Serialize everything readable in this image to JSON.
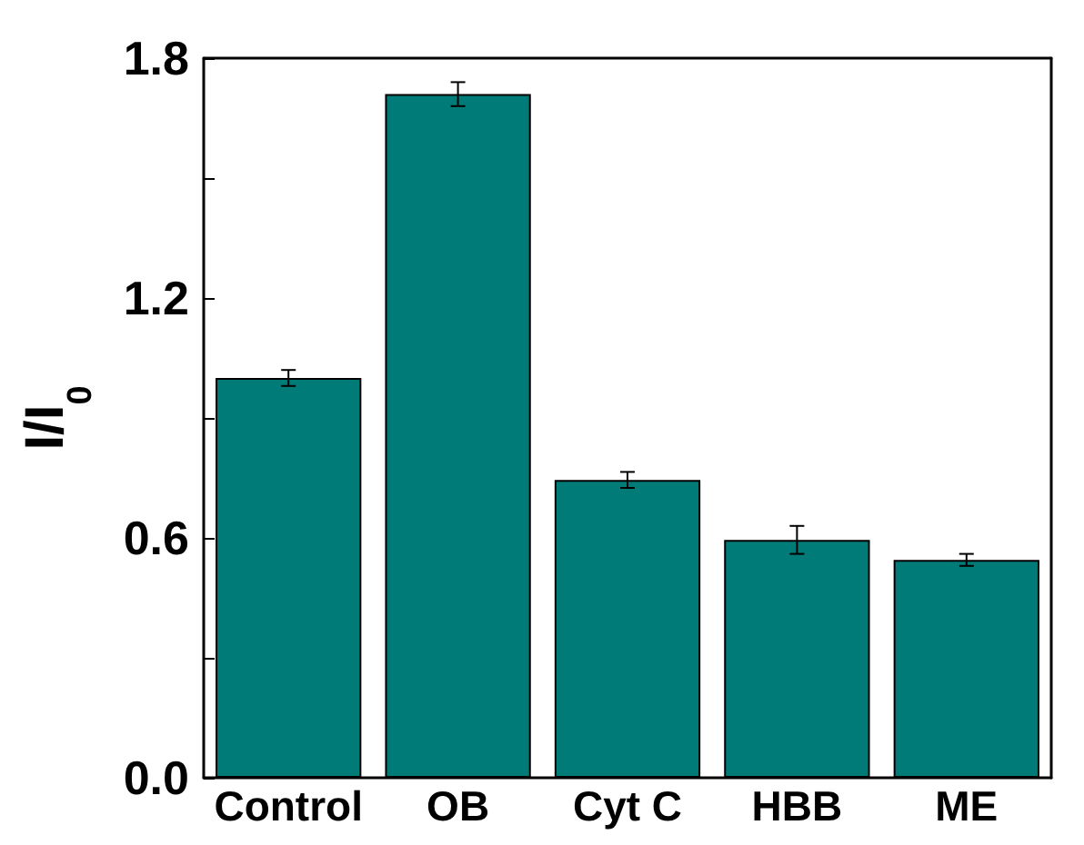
{
  "chart_data": {
    "type": "bar",
    "ylabel": "I/I$_{0}$",
    "categories": [
      "Control",
      "OB",
      "Cyt C",
      "HBB",
      "ME"
    ],
    "values": [
      1.0,
      1.71,
      0.745,
      0.595,
      0.545
    ],
    "errors": [
      0.02,
      0.03,
      0.02,
      0.035,
      0.015
    ],
    "color": "#007b78",
    "ylim": [
      0,
      1.8
    ],
    "yticks": [
      {
        "value": 0,
        "label": "0.0"
      },
      {
        "value": 0.3,
        "label": null
      },
      {
        "value": 0.6,
        "label": "0.6"
      },
      {
        "value": 0.9,
        "label": null
      },
      {
        "value": 1.2,
        "label": "1.2"
      },
      {
        "value": 1.5,
        "label": null
      },
      {
        "value": 1.8,
        "label": "1.8"
      }
    ],
    "grid": false
  }
}
